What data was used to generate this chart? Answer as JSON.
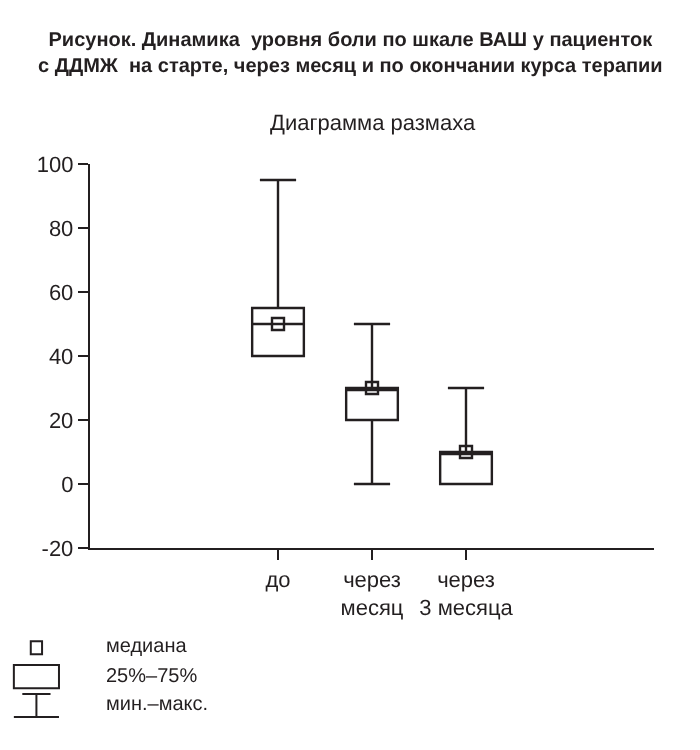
{
  "chart_data": {
    "type": "box",
    "title": "Рисунок. Динамика  уровня боли по шкале ВАШ у пациенток с ДДМЖ  на старте, через месяц и по окончании курса терапии",
    "subtitle": "Диаграмма размаха",
    "categories": [
      null,
      null,
      "до",
      "через месяц",
      "через 3 месяца",
      null,
      null
    ],
    "boxes": [
      null,
      null,
      {
        "low": 40,
        "q1": 40,
        "median": 50,
        "q3": 55,
        "high": 95
      },
      {
        "low": 0,
        "q1": 20,
        "median": 30,
        "q3": 30,
        "high": 50
      },
      {
        "low": 0,
        "q1": 0,
        "median": 10,
        "q3": 10,
        "high": 30
      },
      null,
      null
    ],
    "color": "#231f20",
    "marker": "square",
    "ylim": [
      -20,
      100
    ],
    "yticks": [
      -20,
      0,
      20,
      40,
      60,
      80,
      100
    ],
    "legend": false,
    "annotations": [
      "медиана",
      "25%–75%",
      "мин.–макс."
    ]
  }
}
